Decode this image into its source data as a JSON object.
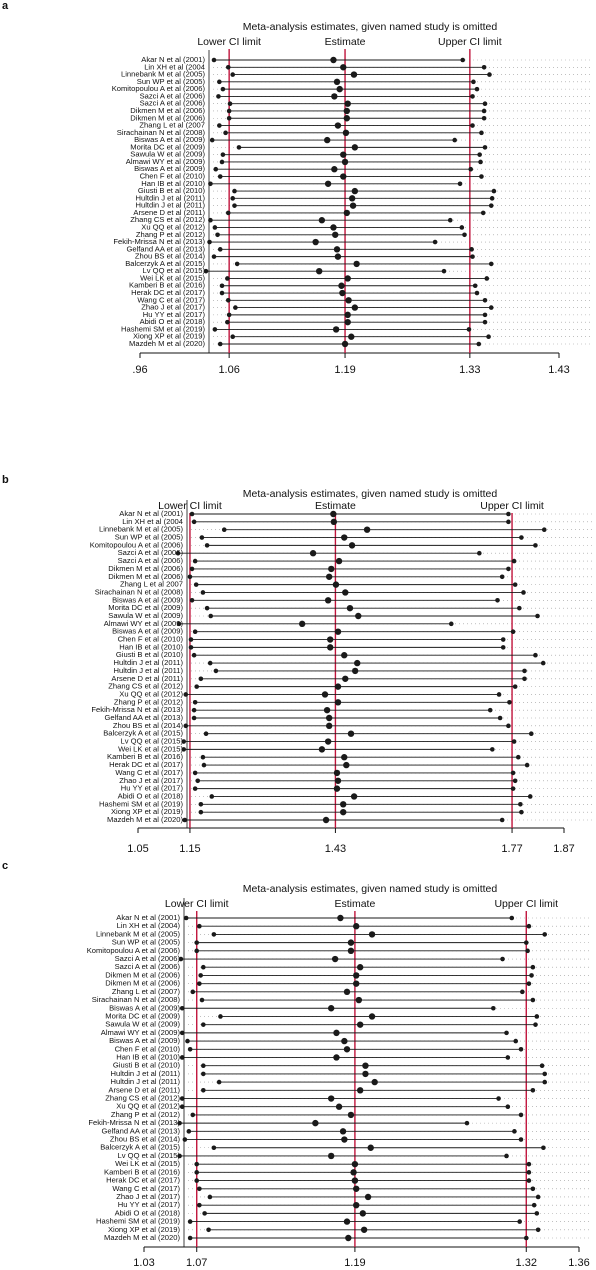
{
  "chart_data": [
    {
      "type": "sensitivity",
      "panel": "a",
      "title": "Meta-analysis estimates, given named study is omitted",
      "categories": [
        "Akar N et al (2001)",
        "Lin XH et al (2004",
        "Linnebank M et al (2005)",
        "Sun WP et al (2005)",
        "Komitopoulou A et al (2006)",
        "Sazci A et al (2006)",
        "Sazci A et al (2006)",
        "Dikmen M et al (2006)",
        "Dikmen M et al (2006)",
        "Zhang L et al (2007",
        "Sirachainan N et al (2008)",
        "Biswas A et al (2009)",
        "Morita DC et al (2009)",
        "Sawula W et al (2009)",
        "Almawi WY et al (2009)",
        "Biswas A et al (2009)",
        "Chen F et al (2010)",
        "Han IB et al (2010)",
        "Giusti B et al (2010)",
        "Hultdin J et al (2011)",
        "Hultdin J et al (2011)",
        "Arsene D et al (2011)",
        "Zhang CS et al (2012)",
        "Xu QQ et al (2012)",
        "Zhang P et al (2012)",
        "Fekih-Mrissa N et al (2013)",
        "Gelfand AA et al (2013)",
        "Zhou BS et al (2014)",
        "Balcerzyk A et al (2015)",
        "Lv QQ et al (2015)",
        "Wei LK et al (2015)",
        "Kamberi B et al (2016)",
        "Herak DC et al (2017)",
        "Wang C et al (2017)",
        "Zhao J et al (2017)",
        "Hu YY et al (2017)",
        "Abidi O et al (2018)",
        "Hashemi SM et al (2019)",
        "Xiong XP et al (2019)",
        "Mazdeh M et al (2020)"
      ],
      "series": [
        {
          "name": "Lower CI limit",
          "reference": 1.06,
          "values": [
            1.043,
            1.059,
            1.064,
            1.049,
            1.053,
            1.048,
            1.061,
            1.06,
            1.06,
            1.049,
            1.056,
            1.041,
            1.071,
            1.053,
            1.052,
            1.045,
            1.05,
            1.039,
            1.066,
            1.064,
            1.066,
            1.059,
            1.039,
            1.044,
            1.047,
            1.038,
            1.05,
            1.043,
            1.069,
            1.034,
            1.058,
            1.052,
            1.052,
            1.059,
            1.067,
            1.06,
            1.058,
            1.044,
            1.064,
            1.05
          ]
        },
        {
          "name": "Estimate",
          "reference": 1.19,
          "values": [
            1.177,
            1.188,
            1.2,
            1.181,
            1.184,
            1.178,
            1.193,
            1.192,
            1.192,
            1.182,
            1.191,
            1.17,
            1.201,
            1.188,
            1.19,
            1.178,
            1.188,
            1.171,
            1.201,
            1.198,
            1.199,
            1.192,
            1.164,
            1.177,
            1.179,
            1.157,
            1.181,
            1.182,
            1.203,
            1.161,
            1.193,
            1.186,
            1.187,
            1.194,
            1.201,
            1.193,
            1.193,
            1.18,
            1.197,
            1.19
          ]
        },
        {
          "name": "Upper CI limit",
          "reference": 1.33,
          "values": [
            1.322,
            1.346,
            1.352,
            1.334,
            1.338,
            1.333,
            1.347,
            1.346,
            1.346,
            1.333,
            1.343,
            1.313,
            1.347,
            1.341,
            1.342,
            1.331,
            1.343,
            1.319,
            1.357,
            1.355,
            1.354,
            1.345,
            1.308,
            1.321,
            1.324,
            1.291,
            1.332,
            1.333,
            1.354,
            1.301,
            1.349,
            1.336,
            1.338,
            1.347,
            1.354,
            1.347,
            1.347,
            1.329,
            1.351,
            1.34
          ]
        }
      ],
      "xlim": [
        0.96,
        1.43
      ],
      "xticks": [
        {
          "value": 0.96,
          "label": ".96"
        },
        1.06,
        1.19,
        1.33,
        1.43
      ],
      "color": "#1a1a1a",
      "reference_color": "#c0143c"
    },
    {
      "type": "sensitivity",
      "panel": "b",
      "title": "Meta-analysis estimates, given named study is omitted",
      "categories": [
        "Akar N et al (2001)",
        "Lin XH et al (2004",
        "Linnebank M et al (2005)",
        "Sun WP et al (2005)",
        "Komitopoulou A et al (2006)",
        "Sazci A et al (2006)",
        "Sazci A et al (2006)",
        "Dikmen M et al (2006)",
        "Dikmen M et al (2006)",
        "Zhang L et al 2007",
        "Sirachainan N et al (2008)",
        "Biswas A et al (2009)",
        "Morita DC et al (2009)",
        "Sawula W et al (2009)",
        "Almawi WY et al (2009)",
        "Biswas A et al (2009)",
        "Chen F et al (2010)",
        "Han IB et al (2010)",
        "Giusti B et al (2010)",
        "Hultdin J et al (2011)",
        "Hultdin J et al (2011)",
        "Arsene D et al (2011)",
        "Zhang CS et al (2012)",
        "Xu QQ et al (2012)",
        "Zhang P et al (2012)",
        "Fekih-Mrissa N et al (2013)",
        "Gelfand AA et al (2013)",
        "Zhou BS et al (2014)",
        "Balcerzyk A et al (2015)",
        "Lv QQ et al (2015)",
        "Wei LK et al (2015)",
        "Kamberi B et al (2016)",
        "Herak DC et al (2017)",
        "Wang C et al (2017)",
        "Zhao J et al (2017)",
        "Hu YY et al (2017)",
        "Abidi O et al (2018)",
        "Hashemi SM et al (2019)",
        "Xiong XP et al (2019)",
        "Mazdeh M et al (2020)"
      ],
      "series": [
        {
          "name": "Lower CI limit",
          "reference": 1.15,
          "values": [
            1.154,
            1.158,
            1.216,
            1.173,
            1.183,
            1.127,
            1.16,
            1.154,
            1.15,
            1.162,
            1.175,
            1.154,
            1.183,
            1.19,
            1.129,
            1.16,
            1.152,
            1.152,
            1.158,
            1.189,
            1.2,
            1.171,
            1.163,
            1.142,
            1.16,
            1.158,
            1.158,
            1.142,
            1.181,
            1.138,
            1.138,
            1.175,
            1.177,
            1.16,
            1.165,
            1.16,
            1.192,
            1.171,
            1.171,
            1.14
          ]
        },
        {
          "name": "Estimate",
          "reference": 1.43,
          "values": [
            1.426,
            1.427,
            1.491,
            1.447,
            1.462,
            1.387,
            1.437,
            1.422,
            1.418,
            1.431,
            1.449,
            1.416,
            1.458,
            1.474,
            1.366,
            1.435,
            1.42,
            1.42,
            1.447,
            1.472,
            1.468,
            1.449,
            1.435,
            1.41,
            1.435,
            1.414,
            1.418,
            1.418,
            1.46,
            1.416,
            1.404,
            1.447,
            1.451,
            1.433,
            1.435,
            1.433,
            1.466,
            1.445,
            1.445,
            1.412
          ]
        },
        {
          "name": "Upper CI limit",
          "reference": 1.77,
          "values": [
            1.763,
            1.763,
            1.832,
            1.788,
            1.815,
            1.707,
            1.774,
            1.763,
            1.751,
            1.776,
            1.792,
            1.742,
            1.784,
            1.819,
            1.653,
            1.772,
            1.753,
            1.753,
            1.815,
            1.83,
            1.794,
            1.794,
            1.776,
            1.745,
            1.765,
            1.728,
            1.747,
            1.763,
            1.807,
            1.774,
            1.732,
            1.782,
            1.799,
            1.772,
            1.776,
            1.772,
            1.805,
            1.786,
            1.788,
            1.751
          ]
        }
      ],
      "xlim": [
        1.05,
        1.87
      ],
      "xticks": [
        1.05,
        1.15,
        1.43,
        1.77,
        1.87
      ],
      "color": "#1a1a1a",
      "reference_color": "#c0143c"
    },
    {
      "type": "sensitivity",
      "panel": "c",
      "title": "Meta-analysis estimates, given named study is omitted",
      "categories": [
        "Akar N et al (2001)",
        "Lin XH et al (2004)",
        "Linnebank M et al (2005)",
        "Sun WP et al (2005)",
        "Komitopoulou A et al (2006)",
        "Sazci A et al (2006)",
        "Sazci A et al (2006)",
        "Dikmen M et al (2006)",
        "Dikmen M et al (2006)",
        "Zhang L et al (2007)",
        "Sirachainan N et al (2008)",
        "Biswas A et al (2009)",
        "Morita DC et al (2009)",
        "Sawula W et al (2009)",
        "Almawi WY et al (2009)",
        "Biswas A et al (2009)",
        "Chen F et al (2010)",
        "Han IB et al (2010)",
        "Giusti B et al (2010)",
        "Hultdin J et al (2011)",
        "Hultdin J et al (2011)",
        "Arsene D et al (2011)",
        "Zhang CS et al (2012)",
        "Xu QQ et al (2012)",
        "Zhang P et al (2012)",
        "Fekih-Mrissa N et al (2013)",
        "Gelfand AA et al (2013)",
        "Zhou BS et al (2014)",
        "Balcerzyk A et al (2015)",
        "Lv QQ et al (2015)",
        "Wei LK et al (2015)",
        "Kamberi B et al (2016)",
        "Herak DC et al (2017)",
        "Wang C et al (2017)",
        "Zhao J et al (2017)",
        "Hu YY et al (2017)",
        "Abidi O et al (2018)",
        "Hashemi SM et al (2019)",
        "Xiong XP et al (2019)",
        "Mazdeh M et al (2020)"
      ],
      "series": [
        {
          "name": "Lower CI limit",
          "reference": 1.07,
          "values": [
            1.062,
            1.072,
            1.083,
            1.07,
            1.07,
            1.058,
            1.075,
            1.073,
            1.072,
            1.067,
            1.074,
            1.059,
            1.088,
            1.075,
            1.059,
            1.063,
            1.065,
            1.059,
            1.075,
            1.075,
            1.087,
            1.075,
            1.059,
            1.059,
            1.067,
            1.057,
            1.064,
            1.061,
            1.083,
            1.057,
            1.07,
            1.07,
            1.07,
            1.072,
            1.08,
            1.072,
            1.076,
            1.065,
            1.079,
            1.065
          ]
        },
        {
          "name": "Estimate",
          "reference": 1.19,
          "values": [
            1.179,
            1.191,
            1.203,
            1.187,
            1.187,
            1.175,
            1.194,
            1.191,
            1.191,
            1.184,
            1.193,
            1.172,
            1.203,
            1.194,
            1.176,
            1.182,
            1.184,
            1.176,
            1.198,
            1.198,
            1.205,
            1.194,
            1.172,
            1.178,
            1.187,
            1.16,
            1.181,
            1.182,
            1.202,
            1.172,
            1.19,
            1.189,
            1.19,
            1.191,
            1.2,
            1.191,
            1.196,
            1.184,
            1.197,
            1.185
          ]
        },
        {
          "name": "Upper CI limit",
          "reference": 1.32,
          "values": [
            1.309,
            1.322,
            1.334,
            1.32,
            1.321,
            1.302,
            1.325,
            1.324,
            1.322,
            1.317,
            1.325,
            1.295,
            1.328,
            1.327,
            1.305,
            1.312,
            1.316,
            1.306,
            1.332,
            1.334,
            1.334,
            1.325,
            1.299,
            1.306,
            1.316,
            1.275,
            1.311,
            1.316,
            1.333,
            1.305,
            1.322,
            1.322,
            1.322,
            1.325,
            1.329,
            1.326,
            1.328,
            1.315,
            1.329,
            1.32
          ]
        }
      ],
      "xlim": [
        1.03,
        1.36
      ],
      "xticks": [
        1.03,
        1.07,
        1.19,
        1.32,
        1.36
      ],
      "color": "#1a1a1a",
      "reference_color": "#c0143c"
    }
  ]
}
